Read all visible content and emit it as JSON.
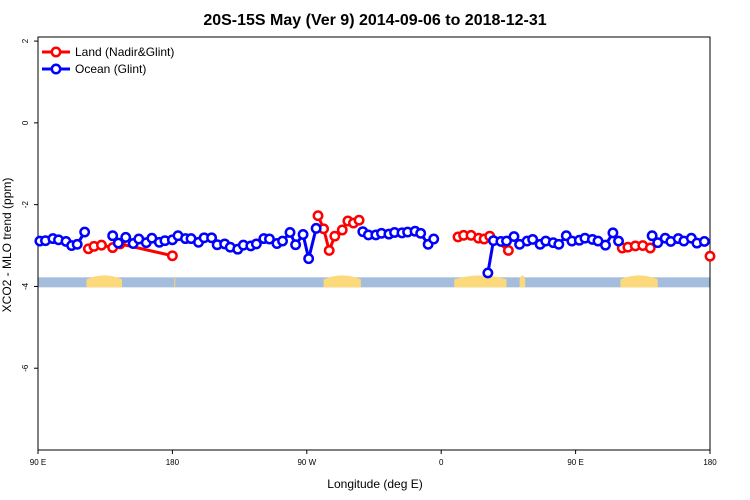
{
  "chart_data": {
    "type": "line",
    "title": "20S-15S May (Ver 9)   2014-09-06 to 2018-12-31",
    "xlabel": "Longitude (deg E)",
    "ylabel": "XCO2 - MLO trend (ppm)",
    "xlim": [
      90,
      450
    ],
    "ylim": [
      -8,
      2.1
    ],
    "x_ticks": [
      {
        "value": 90,
        "label": "90 E"
      },
      {
        "value": 162,
        "label": "180"
      },
      {
        "value": 234,
        "label": "90 W"
      },
      {
        "value": 306,
        "label": "0"
      },
      {
        "value": 378,
        "label": "90 E"
      },
      {
        "value": 450,
        "label": "180"
      }
    ],
    "y_ticks": [
      {
        "value": 2,
        "label": "2"
      },
      {
        "value": 0,
        "label": "0"
      },
      {
        "value": -2,
        "label": "-2"
      },
      {
        "value": -4,
        "label": "-4"
      },
      {
        "value": -6,
        "label": "-6"
      }
    ],
    "grid": false,
    "legend_position": "top-left",
    "colors": {
      "land": "#ff0000",
      "ocean": "#0000ff",
      "surface_ocean": "#a5bddc",
      "surface_land": "#fcd97a"
    },
    "surface_band": {
      "y": -3.9,
      "land_ranges": [
        [
          116,
          135
        ],
        [
          163,
          163.5
        ],
        [
          243,
          263
        ],
        [
          313,
          341
        ],
        [
          348,
          351
        ],
        [
          402,
          422
        ]
      ]
    },
    "series": [
      {
        "name": "Land (Nadir&Glint)",
        "color": "#ff0000",
        "segments": [
          [
            [
              117,
              -3.08
            ],
            [
              120,
              -3.02
            ],
            [
              124,
              -2.99
            ],
            [
              130,
              -3.05
            ],
            [
              134,
              -2.96
            ],
            [
              162,
              -3.25
            ]
          ],
          [
            [
              240,
              -2.27
            ],
            [
              243,
              -2.59
            ],
            [
              246,
              -3.12
            ],
            [
              249,
              -2.77
            ],
            [
              253,
              -2.62
            ],
            [
              256,
              -2.4
            ],
            [
              259,
              -2.45
            ],
            [
              262,
              -2.38
            ]
          ],
          [
            [
              315,
              -2.79
            ],
            [
              318,
              -2.75
            ],
            [
              322,
              -2.75
            ],
            [
              326,
              -2.82
            ],
            [
              329,
              -2.84
            ],
            [
              332,
              -2.77
            ],
            [
              342,
              -3.12
            ]
          ],
          [
            [
              403,
              -3.06
            ],
            [
              406,
              -3.04
            ],
            [
              410,
              -3.01
            ],
            [
              414,
              -3.0
            ],
            [
              418,
              -3.06
            ]
          ],
          [
            [
              450,
              -3.26
            ]
          ]
        ]
      },
      {
        "name": "Ocean (Glint)",
        "color": "#0000ff",
        "segments": [
          [
            [
              91,
              -2.89
            ],
            [
              94,
              -2.88
            ],
            [
              98,
              -2.83
            ],
            [
              101,
              -2.86
            ],
            [
              105,
              -2.9
            ],
            [
              108,
              -3.0
            ],
            [
              111,
              -2.97
            ],
            [
              115,
              -2.67
            ]
          ],
          [
            [
              130,
              -2.76
            ],
            [
              133,
              -2.94
            ],
            [
              137,
              -2.8
            ],
            [
              141,
              -2.95
            ],
            [
              144,
              -2.84
            ],
            [
              148,
              -2.93
            ],
            [
              151,
              -2.82
            ],
            [
              155,
              -2.92
            ],
            [
              158,
              -2.88
            ],
            [
              162,
              -2.86
            ],
            [
              165,
              -2.76
            ],
            [
              169,
              -2.83
            ],
            [
              172,
              -2.83
            ],
            [
              176,
              -2.92
            ],
            [
              179,
              -2.81
            ],
            [
              183,
              -2.81
            ],
            [
              186,
              -2.98
            ],
            [
              190,
              -2.96
            ],
            [
              193,
              -3.04
            ],
            [
              197,
              -3.09
            ],
            [
              200,
              -2.99
            ],
            [
              204,
              -3.01
            ],
            [
              207,
              -2.96
            ],
            [
              211,
              -2.83
            ],
            [
              214,
              -2.84
            ],
            [
              218,
              -2.95
            ],
            [
              221,
              -2.89
            ],
            [
              225,
              -2.68
            ],
            [
              228,
              -2.98
            ],
            [
              232,
              -2.73
            ],
            [
              235,
              -3.32
            ],
            [
              239,
              -2.58
            ]
          ],
          [
            [
              264,
              -2.66
            ],
            [
              267,
              -2.74
            ],
            [
              271,
              -2.74
            ],
            [
              274,
              -2.7
            ],
            [
              278,
              -2.72
            ],
            [
              281,
              -2.68
            ],
            [
              285,
              -2.69
            ],
            [
              288,
              -2.67
            ],
            [
              292,
              -2.65
            ],
            [
              295,
              -2.7
            ],
            [
              299,
              -2.97
            ],
            [
              302,
              -2.84
            ]
          ],
          [
            [
              331,
              -3.67
            ],
            [
              334,
              -2.88
            ],
            [
              338,
              -2.9
            ],
            [
              341,
              -2.89
            ],
            [
              345,
              -2.78
            ],
            [
              348,
              -2.97
            ],
            [
              352,
              -2.89
            ],
            [
              355,
              -2.85
            ],
            [
              359,
              -2.97
            ],
            [
              362,
              -2.89
            ],
            [
              366,
              -2.93
            ],
            [
              369,
              -2.97
            ],
            [
              373,
              -2.76
            ],
            [
              376,
              -2.89
            ],
            [
              380,
              -2.87
            ],
            [
              383,
              -2.82
            ],
            [
              387,
              -2.85
            ],
            [
              390,
              -2.89
            ],
            [
              394,
              -2.99
            ],
            [
              398,
              -2.69
            ],
            [
              401,
              -2.89
            ]
          ],
          [
            [
              419,
              -2.76
            ],
            [
              422,
              -2.93
            ],
            [
              426,
              -2.82
            ],
            [
              429,
              -2.9
            ],
            [
              433,
              -2.83
            ],
            [
              436,
              -2.89
            ],
            [
              440,
              -2.82
            ],
            [
              443,
              -2.94
            ],
            [
              447,
              -2.9
            ]
          ]
        ]
      }
    ]
  }
}
